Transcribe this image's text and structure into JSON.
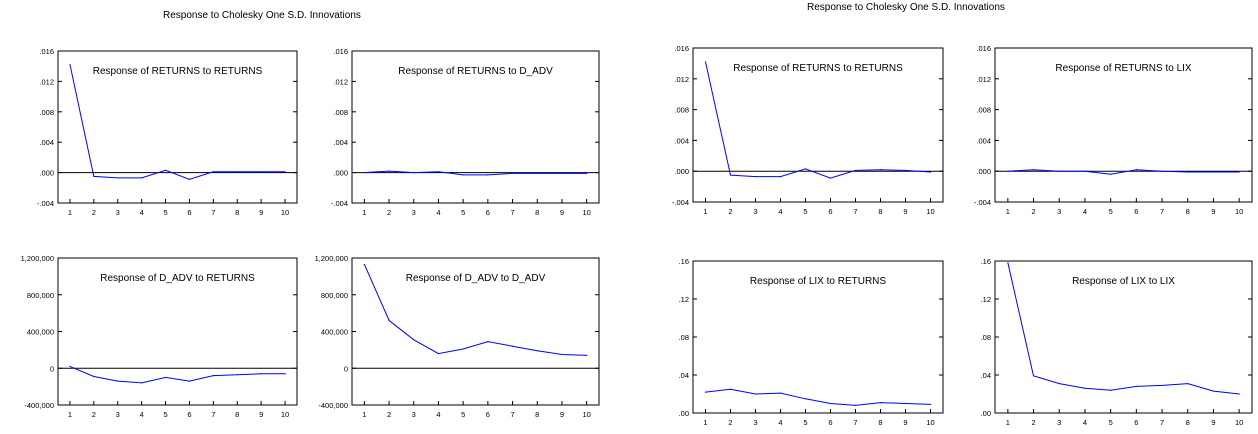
{
  "titles": [
    "Response to Cholesky One S.D. Innovations",
    "Response to Cholesky One S.D. Innovations"
  ],
  "colors": {
    "line": "#0000ff",
    "zero": "#000000",
    "frame": "#000000"
  },
  "chart_data": [
    {
      "type": "line",
      "title": "Response of RETURNS to RETURNS",
      "x": [
        1,
        2,
        3,
        4,
        5,
        6,
        7,
        8,
        9,
        10
      ],
      "ylim": [
        -0.004,
        0.016
      ],
      "yticks": [
        -0.004,
        0,
        0.004,
        0.008,
        0.012,
        0.016
      ],
      "yticklabels": [
        "-.004",
        ".000",
        ".004",
        ".008",
        ".012",
        ".016"
      ],
      "series": [
        {
          "values": [
            0.0142,
            -0.0005,
            -0.0007,
            -0.0007,
            0.0003,
            -0.0009,
            0.0001,
            0.0001,
            0.0001,
            0.0001
          ]
        }
      ]
    },
    {
      "type": "line",
      "title": "Response of RETURNS to D_ADV",
      "x": [
        1,
        2,
        3,
        4,
        5,
        6,
        7,
        8,
        9,
        10
      ],
      "ylim": [
        -0.004,
        0.016
      ],
      "yticks": [
        -0.004,
        0,
        0.004,
        0.008,
        0.012,
        0.016
      ],
      "yticklabels": [
        "-.004",
        ".000",
        ".004",
        ".008",
        ".012",
        ".016"
      ],
      "series": [
        {
          "values": [
            0.0,
            0.0002,
            0.0,
            0.0001,
            -0.0003,
            -0.0003,
            -0.0001,
            -0.0001,
            -0.0001,
            -0.0001
          ]
        }
      ]
    },
    {
      "type": "line",
      "title": "Response of D_ADV to RETURNS",
      "x": [
        1,
        2,
        3,
        4,
        5,
        6,
        7,
        8,
        9,
        10
      ],
      "ylim": [
        -400000,
        1200000
      ],
      "yticks": [
        -400000,
        0,
        400000,
        800000,
        1200000
      ],
      "yticklabels": [
        "-400,000",
        "0",
        "400,000",
        "800,000",
        "1,200,000"
      ],
      "series": [
        {
          "values": [
            20000,
            -90000,
            -140000,
            -160000,
            -100000,
            -140000,
            -80000,
            -70000,
            -60000,
            -60000
          ]
        }
      ]
    },
    {
      "type": "line",
      "title": "Response of D_ADV to D_ADV",
      "x": [
        1,
        2,
        3,
        4,
        5,
        6,
        7,
        8,
        9,
        10
      ],
      "ylim": [
        -400000,
        1200000
      ],
      "yticks": [
        -400000,
        0,
        400000,
        800000,
        1200000
      ],
      "yticklabels": [
        "-400,000",
        "0",
        "400,000",
        "800,000",
        "1,200,000"
      ],
      "series": [
        {
          "values": [
            1130000,
            520000,
            310000,
            160000,
            210000,
            290000,
            240000,
            190000,
            150000,
            140000
          ]
        }
      ]
    },
    {
      "type": "line",
      "title": "Response of RETURNS to RETURNS",
      "x": [
        1,
        2,
        3,
        4,
        5,
        6,
        7,
        8,
        9,
        10
      ],
      "ylim": [
        -0.004,
        0.016
      ],
      "yticks": [
        -0.004,
        0,
        0.004,
        0.008,
        0.012,
        0.016
      ],
      "yticklabels": [
        "-.004",
        ".000",
        ".004",
        ".008",
        ".012",
        ".016"
      ],
      "series": [
        {
          "values": [
            0.0142,
            -0.0005,
            -0.0007,
            -0.0007,
            0.0003,
            -0.0009,
            0.0001,
            0.0002,
            0.0001,
            -0.0001
          ]
        }
      ]
    },
    {
      "type": "line",
      "title": "Response of RETURNS to LIX",
      "x": [
        1,
        2,
        3,
        4,
        5,
        6,
        7,
        8,
        9,
        10
      ],
      "ylim": [
        -0.004,
        0.016
      ],
      "yticks": [
        -0.004,
        0,
        0.004,
        0.008,
        0.012,
        0.016
      ],
      "yticklabels": [
        "-.004",
        ".000",
        ".004",
        ".008",
        ".012",
        ".016"
      ],
      "series": [
        {
          "values": [
            0.0,
            0.0002,
            0.0,
            0.0,
            -0.0004,
            0.0002,
            0.0,
            -0.0001,
            -0.0001,
            -0.0001
          ]
        }
      ]
    },
    {
      "type": "line",
      "title": "Response of LIX to RETURNS",
      "x": [
        1,
        2,
        3,
        4,
        5,
        6,
        7,
        8,
        9,
        10
      ],
      "ylim": [
        0.0,
        0.16
      ],
      "yticks": [
        0.0,
        0.04,
        0.08,
        0.12,
        0.16
      ],
      "yticklabels": [
        ".00",
        ".04",
        ".08",
        ".12",
        ".16"
      ],
      "series": [
        {
          "values": [
            0.022,
            0.025,
            0.02,
            0.021,
            0.015,
            0.01,
            0.008,
            0.011,
            0.01,
            0.009
          ]
        }
      ]
    },
    {
      "type": "line",
      "title": "Response of LIX to LIX",
      "x": [
        1,
        2,
        3,
        4,
        5,
        6,
        7,
        8,
        9,
        10
      ],
      "ylim": [
        0.0,
        0.16
      ],
      "yticks": [
        0.0,
        0.04,
        0.08,
        0.12,
        0.16
      ],
      "yticklabels": [
        ".00",
        ".04",
        ".08",
        ".12",
        ".16"
      ],
      "series": [
        {
          "values": [
            0.158,
            0.039,
            0.031,
            0.026,
            0.024,
            0.028,
            0.029,
            0.031,
            0.023,
            0.02
          ]
        }
      ]
    }
  ]
}
